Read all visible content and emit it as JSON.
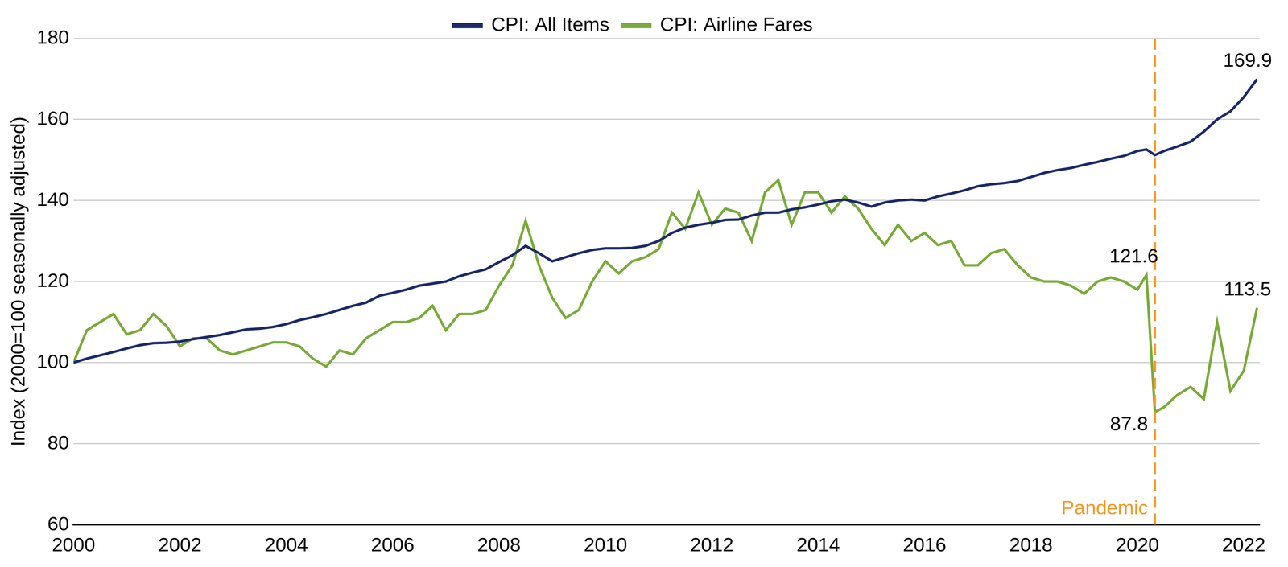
{
  "chart_data": {
    "type": "line",
    "y_label": "Index (2000=100 seasonally adjusted)",
    "x": [
      2000,
      2000.25,
      2000.5,
      2000.75,
      2001,
      2001.25,
      2001.5,
      2001.75,
      2002,
      2002.25,
      2002.5,
      2002.75,
      2003,
      2003.25,
      2003.5,
      2003.75,
      2004,
      2004.25,
      2004.5,
      2004.75,
      2005,
      2005.25,
      2005.5,
      2005.75,
      2006,
      2006.25,
      2006.5,
      2006.75,
      2007,
      2007.25,
      2007.5,
      2007.75,
      2008,
      2008.25,
      2008.5,
      2008.75,
      2009,
      2009.25,
      2009.5,
      2009.75,
      2010,
      2010.25,
      2010.5,
      2010.75,
      2011,
      2011.25,
      2011.5,
      2011.75,
      2012,
      2012.25,
      2012.5,
      2012.75,
      2013,
      2013.25,
      2013.5,
      2013.75,
      2014,
      2014.25,
      2014.5,
      2014.75,
      2015,
      2015.25,
      2015.5,
      2015.75,
      2016,
      2016.25,
      2016.5,
      2016.75,
      2017,
      2017.25,
      2017.5,
      2017.75,
      2018,
      2018.25,
      2018.5,
      2018.75,
      2019,
      2019.25,
      2019.5,
      2019.75,
      2020,
      2020.17,
      2020.33,
      2020.5,
      2020.75,
      2021,
      2021.25,
      2021.5,
      2021.75,
      2022,
      2022.25
    ],
    "series": [
      {
        "name": "CPI: All Items",
        "color": "#1b2a6b",
        "values": [
          100,
          101,
          101.8,
          102.6,
          103.5,
          104.3,
          104.8,
          104.9,
          105.2,
          105.8,
          106.3,
          106.8,
          107.5,
          108.2,
          108.4,
          108.8,
          109.5,
          110.5,
          111.2,
          112,
          113,
          114,
          114.8,
          116.5,
          117.2,
          118,
          119,
          119.5,
          120,
          121.3,
          122.2,
          123,
          124.8,
          126.5,
          128.8,
          127,
          125,
          126,
          127,
          127.8,
          128.2,
          128.2,
          128.3,
          128.8,
          130,
          132,
          133.3,
          134,
          134.5,
          135.2,
          135.3,
          136.3,
          137,
          137,
          137.8,
          138.3,
          139,
          139.8,
          140.2,
          139.5,
          138.5,
          139.5,
          140,
          140.2,
          140,
          141,
          141.7,
          142.5,
          143.5,
          144,
          144.3,
          144.8,
          145.8,
          146.8,
          147.5,
          148,
          148.8,
          149.5,
          150.3,
          151,
          152.2,
          152.6,
          151.2,
          152.2,
          153.3,
          154.5,
          157,
          160,
          162,
          165.5,
          169.9
        ]
      },
      {
        "name": "CPI: Airline Fares",
        "color": "#7aab3a",
        "values": [
          100,
          108,
          110,
          112,
          107,
          108,
          112,
          109,
          104,
          106,
          106,
          103,
          102,
          103,
          104,
          105,
          105,
          104,
          101,
          99,
          103,
          102,
          106,
          108,
          110,
          110,
          111,
          114,
          108,
          112,
          112,
          113,
          119,
          124,
          135,
          124,
          116,
          111,
          113,
          120,
          125,
          122,
          125,
          126,
          128,
          137,
          133,
          142,
          134,
          138,
          137,
          130,
          142,
          145,
          134,
          142,
          142,
          137,
          141,
          138,
          133,
          129,
          134,
          130,
          132,
          129,
          130,
          124,
          124,
          127,
          128,
          124,
          121,
          120,
          120,
          119,
          117,
          120,
          121,
          120,
          118,
          121.6,
          87.8,
          89,
          92,
          94,
          91,
          110,
          93,
          98,
          113.5
        ]
      }
    ],
    "xlim": [
      2000,
      2022.3
    ],
    "xticks": [
      2000,
      2002,
      2004,
      2006,
      2008,
      2010,
      2012,
      2014,
      2016,
      2018,
      2020,
      2022
    ],
    "ylim": [
      60,
      180
    ],
    "yticks": [
      60,
      80,
      100,
      120,
      140,
      160,
      180
    ],
    "grid": true,
    "legend": "top",
    "annotations": [
      {
        "text": "169.9",
        "x": 2022.25,
        "y": 169.9
      },
      {
        "text": "121.6",
        "x": 2020.17,
        "y": 121.6
      },
      {
        "text": "87.8",
        "x": 2020.33,
        "y": 87.8
      },
      {
        "text": "113.5",
        "x": 2022.25,
        "y": 113.5
      },
      {
        "text": "Pandemic",
        "x": 2020.33,
        "type": "vline",
        "color": "#f39c2a",
        "line_style": "dashed"
      }
    ]
  }
}
